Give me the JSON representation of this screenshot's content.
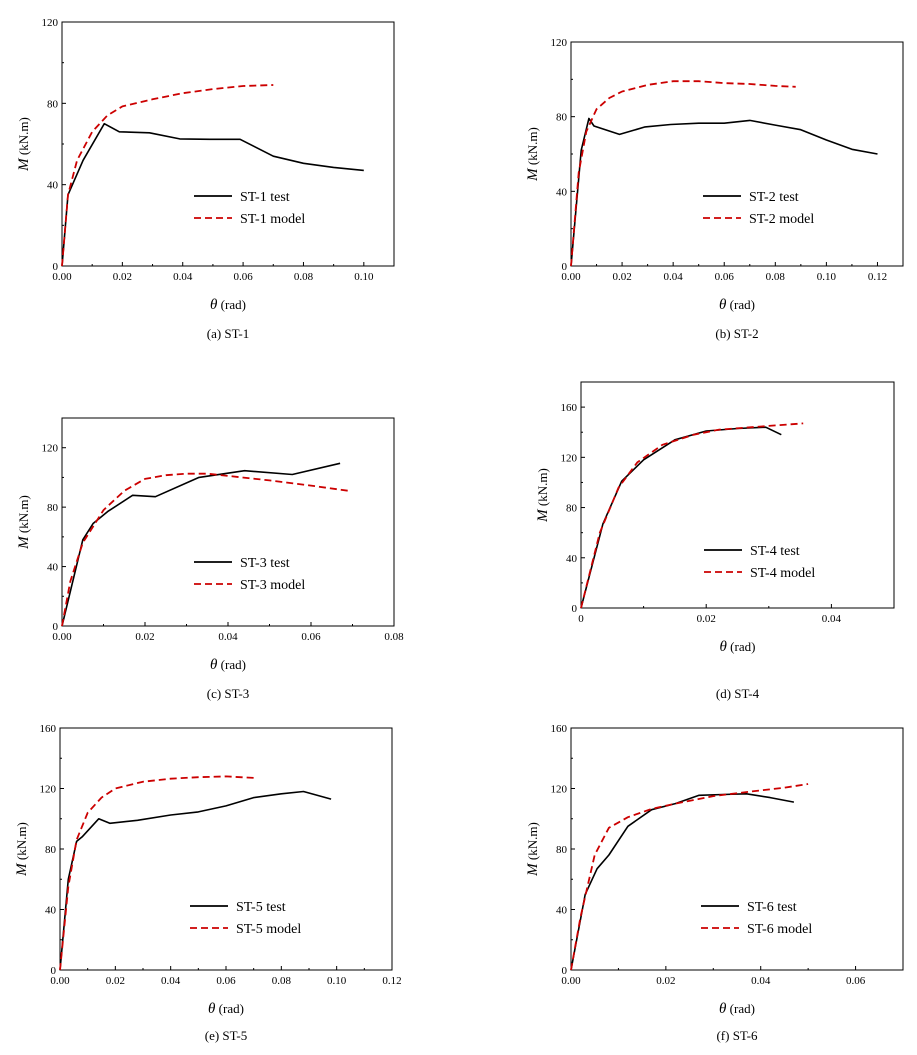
{
  "colors": {
    "test": "#000000",
    "model": "#cc0000",
    "axis": "#000000"
  },
  "legend_placement": "lower-right",
  "chart_data": [
    {
      "type": "line",
      "caption": "(a) ST-1",
      "xlabel_sym": "θ",
      "xlabel_unit": " (rad)",
      "ylabel_sym": "M",
      "ylabel_unit": " (kN.m)",
      "xlim": [
        0,
        0.11
      ],
      "ylim": [
        0,
        120
      ],
      "xticks": [
        0,
        0.02,
        0.04,
        0.06,
        0.08,
        0.1
      ],
      "xtick_labels": [
        "0.00",
        "0.02",
        "0.04",
        "0.06",
        "0.08",
        "0.10"
      ],
      "yticks": [
        0,
        40,
        80,
        120
      ],
      "ytick_labels": [
        "0",
        "40",
        "80",
        "120"
      ],
      "series": [
        {
          "name": "ST-1 test",
          "style": "solid",
          "x": [
            0,
            0.002,
            0.007,
            0.014,
            0.019,
            0.029,
            0.039,
            0.049,
            0.059,
            0.07,
            0.08,
            0.09,
            0.1
          ],
          "y": [
            0,
            35,
            52,
            70,
            66,
            65.5,
            62.5,
            62.3,
            62.3,
            54,
            50.5,
            48.5,
            47
          ]
        },
        {
          "name": "ST-1 model",
          "style": "dashed",
          "x": [
            0,
            0.002,
            0.005,
            0.01,
            0.015,
            0.02,
            0.03,
            0.04,
            0.05,
            0.06,
            0.07
          ],
          "y": [
            0,
            35,
            52,
            66,
            74,
            78.5,
            82,
            85,
            87,
            88.5,
            89
          ]
        }
      ]
    },
    {
      "type": "line",
      "caption": "(b) ST-2",
      "xlabel_sym": "θ",
      "xlabel_unit": " (rad)",
      "ylabel_sym": "M",
      "ylabel_unit": " (kN.m)",
      "xlim": [
        0,
        0.13
      ],
      "ylim": [
        0,
        120
      ],
      "xticks": [
        0,
        0.02,
        0.04,
        0.06,
        0.08,
        0.1,
        0.12
      ],
      "xtick_labels": [
        "0.00",
        "0.02",
        "0.04",
        "0.06",
        "0.08",
        "0.10",
        "0.12"
      ],
      "yticks": [
        0,
        40,
        80,
        120
      ],
      "ytick_labels": [
        "0",
        "40",
        "80",
        "120"
      ],
      "series": [
        {
          "name": "ST-2 test",
          "style": "solid",
          "x": [
            0,
            0.004,
            0.007,
            0.009,
            0.019,
            0.029,
            0.039,
            0.05,
            0.06,
            0.07,
            0.08,
            0.09,
            0.1,
            0.11,
            0.12
          ],
          "y": [
            0,
            62,
            79,
            75,
            70.5,
            74.5,
            75.8,
            76.5,
            76.5,
            78,
            75.5,
            73,
            67.5,
            62.5,
            60
          ]
        },
        {
          "name": "ST-2 model",
          "style": "dashed",
          "x": [
            0,
            0.003,
            0.006,
            0.01,
            0.015,
            0.02,
            0.03,
            0.04,
            0.05,
            0.06,
            0.07,
            0.08,
            0.088
          ],
          "y": [
            0,
            50,
            72,
            84,
            90,
            93.5,
            97,
            99,
            99,
            98,
            97.5,
            96.5,
            96
          ]
        }
      ]
    },
    {
      "type": "line",
      "caption": "(c) ST-3",
      "xlabel_sym": "θ",
      "xlabel_unit": " (rad)",
      "ylabel_sym": "M",
      "ylabel_unit": " (kN.m)",
      "xlim": [
        0,
        0.08
      ],
      "ylim": [
        0,
        140
      ],
      "xticks": [
        0,
        0.02,
        0.04,
        0.06,
        0.08
      ],
      "xtick_labels": [
        "0.00",
        "0.02",
        "0.04",
        "0.06",
        "0.08"
      ],
      "yticks": [
        0,
        40,
        80,
        120
      ],
      "ytick_labels": [
        "0",
        "40",
        "80",
        "120"
      ],
      "series": [
        {
          "name": "ST-3 test",
          "style": "solid",
          "x": [
            0,
            0.005,
            0.0075,
            0.011,
            0.017,
            0.0225,
            0.033,
            0.044,
            0.0555,
            0.067
          ],
          "y": [
            0,
            58,
            69,
            77,
            88,
            87,
            100,
            104.5,
            102,
            109.5
          ]
        },
        {
          "name": "ST-3 model",
          "style": "dashed",
          "x": [
            0,
            0.002,
            0.005,
            0.01,
            0.015,
            0.02,
            0.025,
            0.03,
            0.035,
            0.04,
            0.05,
            0.06,
            0.069
          ],
          "y": [
            0,
            30,
            56,
            78,
            91,
            99,
            101.5,
            102.5,
            102.5,
            101,
            98,
            94.5,
            91
          ]
        }
      ]
    },
    {
      "type": "line",
      "caption": "(d) ST-4",
      "xlabel_sym": "θ",
      "xlabel_unit": " (rad)",
      "ylabel_sym": "M",
      "ylabel_unit": " (kN.m)",
      "xlim": [
        0,
        0.05
      ],
      "ylim": [
        0,
        180
      ],
      "xticks": [
        0,
        0.02,
        0.04
      ],
      "xtick_labels": [
        "0",
        "0.02",
        "0.04"
      ],
      "yticks": [
        0,
        40,
        80,
        120,
        160
      ],
      "ytick_labels": [
        "0",
        "40",
        "80",
        "120",
        "160"
      ],
      "series": [
        {
          "name": "ST-4 test",
          "style": "solid",
          "x": [
            0,
            0.0035,
            0.0065,
            0.01,
            0.015,
            0.02,
            0.025,
            0.0295,
            0.032
          ],
          "y": [
            0,
            67,
            101,
            118,
            134,
            141,
            143,
            144,
            138
          ]
        },
        {
          "name": "ST-4 model",
          "style": "dashed",
          "x": [
            0,
            0.003,
            0.006,
            0.009,
            0.013,
            0.018,
            0.022,
            0.026,
            0.03,
            0.0355
          ],
          "y": [
            0,
            60,
            96,
            116,
            130,
            138,
            142,
            143.5,
            145,
            147
          ]
        }
      ]
    },
    {
      "type": "line",
      "caption": "(e) ST-5",
      "xlabel_sym": "θ",
      "xlabel_unit": " (rad)",
      "ylabel_sym": "M",
      "ylabel_unit": " (kN.m)",
      "xlim": [
        0,
        0.12
      ],
      "ylim": [
        0,
        160
      ],
      "xticks": [
        0,
        0.02,
        0.04,
        0.06,
        0.08,
        0.1,
        0.12
      ],
      "xtick_labels": [
        "0.00",
        "0.02",
        "0.04",
        "0.06",
        "0.08",
        "0.10",
        "0.12"
      ],
      "yticks": [
        0,
        40,
        80,
        120,
        160
      ],
      "ytick_labels": [
        "0",
        "40",
        "80",
        "120",
        "160"
      ],
      "series": [
        {
          "name": "ST-5 test",
          "style": "solid",
          "x": [
            0,
            0.003,
            0.006,
            0.008,
            0.014,
            0.018,
            0.028,
            0.04,
            0.05,
            0.06,
            0.07,
            0.08,
            0.088,
            0.098
          ],
          "y": [
            0,
            60,
            85,
            88,
            100,
            97,
            99,
            102.5,
            104.5,
            108.5,
            114,
            116.5,
            118,
            113
          ]
        },
        {
          "name": "ST-5 model",
          "style": "dashed",
          "x": [
            0,
            0.003,
            0.006,
            0.01,
            0.015,
            0.02,
            0.03,
            0.04,
            0.05,
            0.06,
            0.07
          ],
          "y": [
            0,
            55,
            86,
            104,
            114,
            120,
            124.5,
            126.5,
            127.5,
            128,
            127
          ]
        }
      ]
    },
    {
      "type": "line",
      "caption": "(f) ST-6",
      "xlabel_sym": "θ",
      "xlabel_unit": " (rad)",
      "ylabel_sym": "M",
      "ylabel_unit": " (kN.m)",
      "xlim": [
        0,
        0.07
      ],
      "ylim": [
        0,
        160
      ],
      "xticks": [
        0,
        0.02,
        0.04,
        0.06
      ],
      "xtick_labels": [
        "0.00",
        "0.02",
        "0.04",
        "0.06"
      ],
      "yticks": [
        0,
        40,
        80,
        120,
        160
      ],
      "ytick_labels": [
        "0",
        "40",
        "80",
        "120",
        "160"
      ],
      "series": [
        {
          "name": "ST-6 test",
          "style": "solid",
          "x": [
            0,
            0.003,
            0.0055,
            0.008,
            0.012,
            0.017,
            0.022,
            0.027,
            0.032,
            0.037,
            0.042,
            0.047
          ],
          "y": [
            0,
            50,
            67,
            76,
            95,
            106,
            110,
            115.5,
            116,
            116.5,
            114,
            111
          ]
        },
        {
          "name": "ST-6 model",
          "style": "dashed",
          "x": [
            0,
            0.002,
            0.005,
            0.008,
            0.012,
            0.017,
            0.022,
            0.03,
            0.038,
            0.045,
            0.05
          ],
          "y": [
            0,
            35,
            76,
            94,
            101,
            106.5,
            110,
            115,
            118,
            120.5,
            123
          ]
        }
      ]
    }
  ]
}
